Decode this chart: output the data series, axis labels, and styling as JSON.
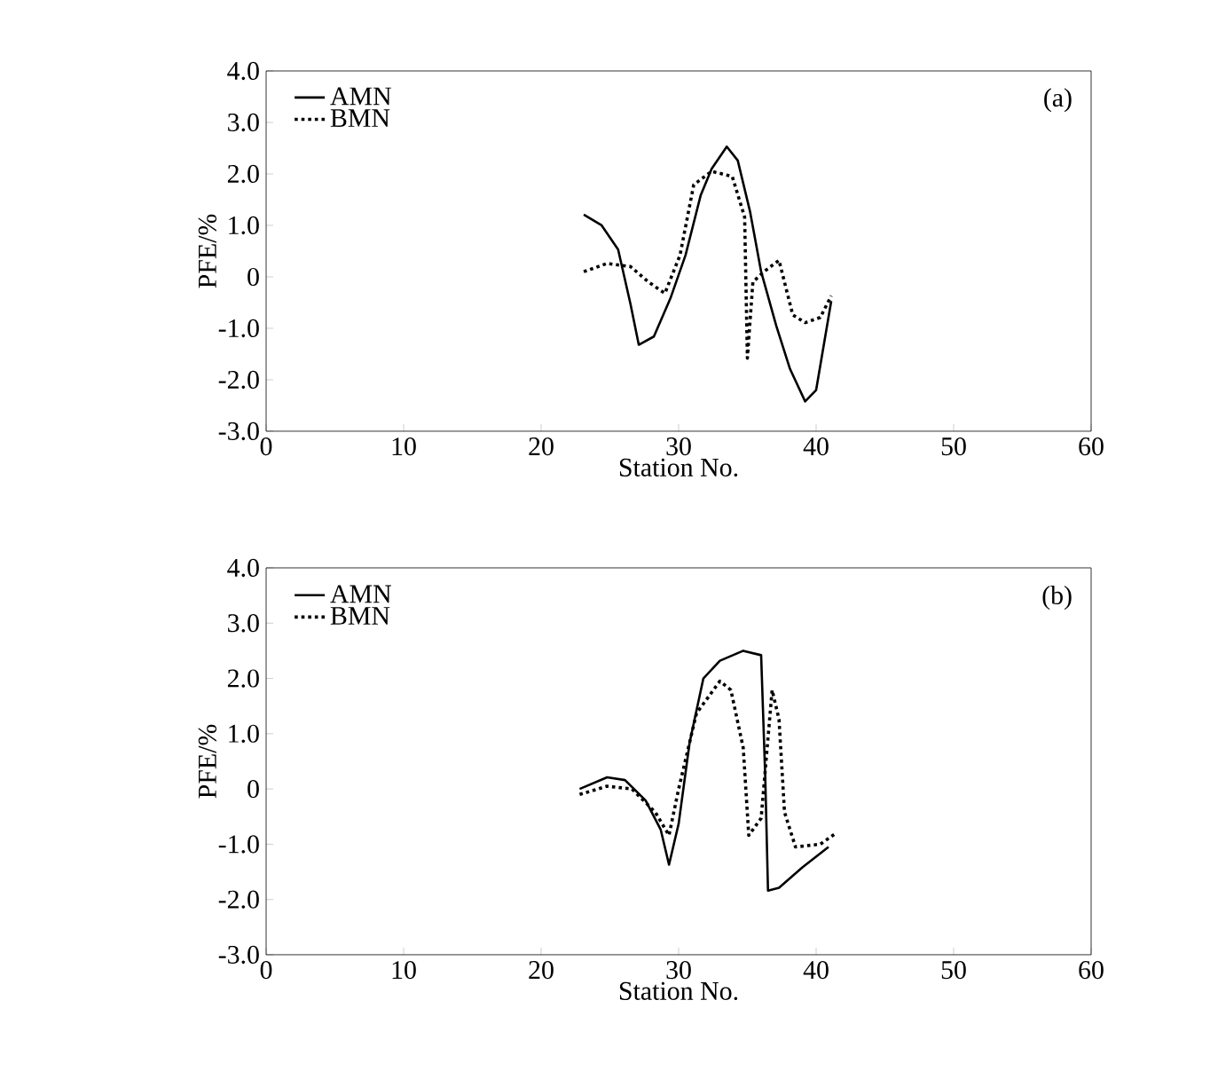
{
  "chart_data": [
    {
      "type": "line",
      "xlabel": "Station No.",
      "ylabel": "PFE/%",
      "legend": "top left",
      "annotations": [
        "(a)"
      ],
      "xlim": [
        0,
        60
      ],
      "xticks": [
        0,
        10,
        20,
        30,
        40,
        50,
        60
      ],
      "ylim": [
        -3,
        4
      ],
      "yticks": [
        {
          "value": -3,
          "label": "-3.0"
        },
        {
          "value": -2,
          "label": "-2.0"
        },
        {
          "value": -1,
          "label": "-1.0"
        },
        0,
        {
          "value": 1,
          "label": "1.0"
        },
        {
          "value": 2,
          "label": "2.0"
        },
        {
          "value": 3,
          "label": "3.0"
        },
        {
          "value": 4,
          "label": "4.0"
        }
      ],
      "series": [
        {
          "name": "AMN",
          "color": "#000000",
          "line_style": "solid",
          "x": [
            23.1,
            24.4,
            25.6,
            26.5,
            27.1,
            28.2,
            29.4,
            30.5,
            31.6,
            32.4,
            33.5,
            34.3,
            35.2,
            36.0,
            37.1,
            38.1,
            39.2,
            40.0,
            41.1
          ],
          "values": [
            1.21,
            1.0,
            0.53,
            -0.53,
            -1.32,
            -1.16,
            -0.42,
            0.42,
            1.58,
            2.1,
            2.53,
            2.26,
            1.26,
            0.1,
            -0.95,
            -1.79,
            -2.42,
            -2.2,
            -0.47
          ]
        },
        {
          "name": "BMN",
          "color": "#000000",
          "line_style": "dotted",
          "x": [
            23.1,
            24.8,
            26.5,
            27.8,
            29.0,
            30.1,
            31.1,
            32.4,
            33.9,
            34.8,
            35.0,
            35.4,
            36.2,
            37.3,
            38.3,
            39.2,
            40.3,
            41.1
          ],
          "values": [
            0.1,
            0.26,
            0.2,
            -0.1,
            -0.32,
            0.42,
            1.79,
            2.05,
            1.95,
            1.16,
            -1.58,
            -0.1,
            0.1,
            0.32,
            -0.74,
            -0.89,
            -0.79,
            -0.37
          ]
        }
      ]
    },
    {
      "type": "line",
      "xlabel": "Station No.",
      "ylabel": "PFE/%",
      "legend": "top left",
      "annotations": [
        "(b)"
      ],
      "xlim": [
        0,
        60
      ],
      "xticks": [
        0,
        10,
        20,
        30,
        40,
        50,
        60
      ],
      "ylim": [
        -3,
        4
      ],
      "yticks": [
        {
          "value": -3,
          "label": "-3.0"
        },
        {
          "value": -2,
          "label": "-2.0"
        },
        {
          "value": -1,
          "label": "-1.0"
        },
        0,
        {
          "value": 1,
          "label": "1.0"
        },
        {
          "value": 2,
          "label": "2.0"
        },
        {
          "value": 3,
          "label": "3.0"
        },
        {
          "value": 4,
          "label": "4.0"
        }
      ],
      "series": [
        {
          "name": "AMN",
          "color": "#000000",
          "line_style": "solid",
          "x": [
            22.8,
            24.8,
            26.1,
            27.6,
            28.7,
            29.3,
            30.0,
            30.8,
            31.8,
            33.0,
            34.7,
            36.0,
            36.3,
            36.5,
            37.3,
            39.0,
            40.9
          ],
          "values": [
            0,
            0.21,
            0.16,
            -0.21,
            -0.74,
            -1.37,
            -0.63,
            0.84,
            2.0,
            2.32,
            2.5,
            2.42,
            0.21,
            -1.84,
            -1.79,
            -1.42,
            -1.05
          ]
        },
        {
          "name": "BMN",
          "color": "#000000",
          "line_style": "dotted",
          "x": [
            22.8,
            24.8,
            26.6,
            28.3,
            29.3,
            30.0,
            31.3,
            33.0,
            33.8,
            34.7,
            35.1,
            36.0,
            36.8,
            37.3,
            37.7,
            38.5,
            40.3,
            41.5
          ],
          "values": [
            -0.1,
            0.05,
            0,
            -0.42,
            -0.84,
            0,
            1.37,
            1.95,
            1.79,
            0.74,
            -0.84,
            -0.53,
            1.79,
            1.26,
            -0.42,
            -1.05,
            -1.0,
            -0.79
          ]
        }
      ]
    }
  ]
}
